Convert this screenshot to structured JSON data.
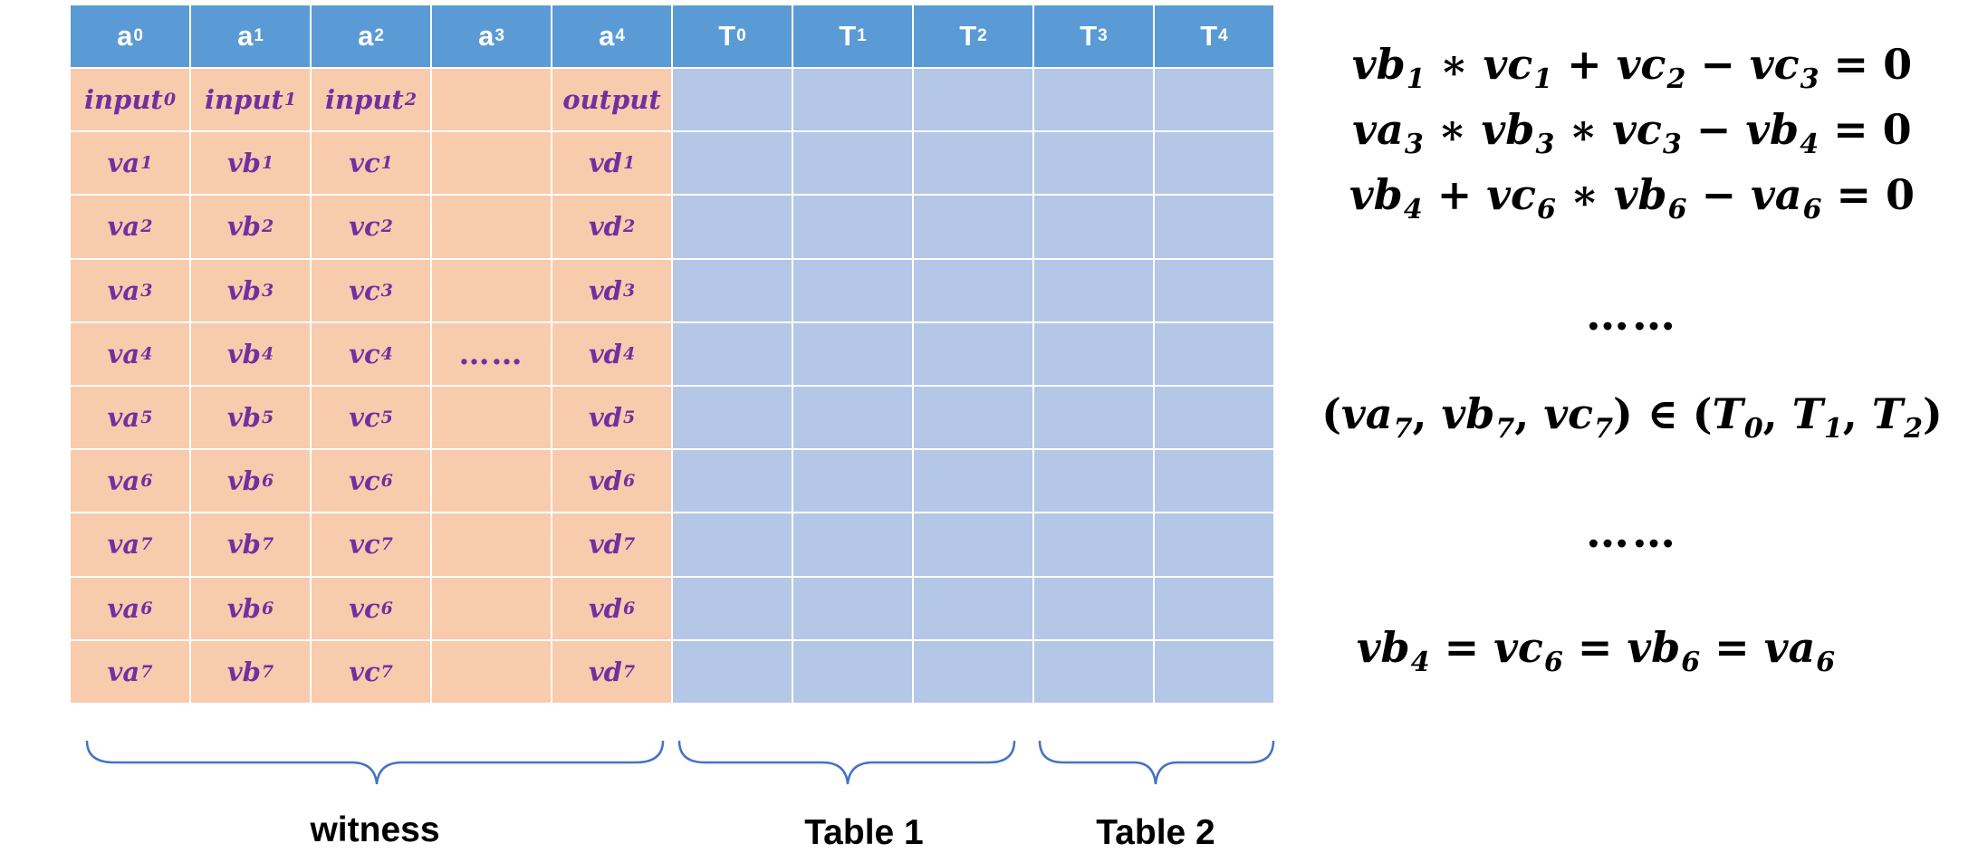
{
  "headers": [
    {
      "base": "a",
      "sub": "0",
      "kind": "witness"
    },
    {
      "base": "a",
      "sub": "1",
      "kind": "witness"
    },
    {
      "base": "a",
      "sub": "2",
      "kind": "witness"
    },
    {
      "base": "a",
      "sub": "3",
      "kind": "witness"
    },
    {
      "base": "a",
      "sub": "4",
      "kind": "witness"
    },
    {
      "base": "T",
      "sub": "0",
      "kind": "table"
    },
    {
      "base": "T",
      "sub": "1",
      "kind": "table"
    },
    {
      "base": "T",
      "sub": "2",
      "kind": "table"
    },
    {
      "base": "T",
      "sub": "3",
      "kind": "table"
    },
    {
      "base": "T",
      "sub": "4",
      "kind": "table"
    }
  ],
  "witness_rows": [
    [
      {
        "b": "input",
        "s": "0"
      },
      {
        "b": "input",
        "s": "1"
      },
      {
        "b": "input",
        "s": "2"
      },
      {
        "b": "",
        "s": ""
      },
      {
        "b": "output",
        "s": ""
      }
    ],
    [
      {
        "b": "va",
        "s": "1"
      },
      {
        "b": "vb",
        "s": "1"
      },
      {
        "b": "vc",
        "s": "1"
      },
      {
        "b": "",
        "s": ""
      },
      {
        "b": "vd",
        "s": "1"
      }
    ],
    [
      {
        "b": "va",
        "s": "2"
      },
      {
        "b": "vb",
        "s": "2"
      },
      {
        "b": "vc",
        "s": "2"
      },
      {
        "b": "",
        "s": ""
      },
      {
        "b": "vd",
        "s": "2"
      }
    ],
    [
      {
        "b": "va",
        "s": "3"
      },
      {
        "b": "vb",
        "s": "3"
      },
      {
        "b": "vc",
        "s": "3"
      },
      {
        "b": "",
        "s": ""
      },
      {
        "b": "vd",
        "s": "3"
      }
    ],
    [
      {
        "b": "va",
        "s": "4"
      },
      {
        "b": "vb",
        "s": "4"
      },
      {
        "b": "vc",
        "s": "4"
      },
      {
        "b": "……",
        "s": ""
      },
      {
        "b": "vd",
        "s": "4"
      }
    ],
    [
      {
        "b": "va",
        "s": "5"
      },
      {
        "b": "vb",
        "s": "5"
      },
      {
        "b": "vc",
        "s": "5"
      },
      {
        "b": "",
        "s": ""
      },
      {
        "b": "vd",
        "s": "5"
      }
    ],
    [
      {
        "b": "va",
        "s": "6"
      },
      {
        "b": "vb",
        "s": "6"
      },
      {
        "b": "vc",
        "s": "6"
      },
      {
        "b": "",
        "s": ""
      },
      {
        "b": "vd",
        "s": "6"
      }
    ],
    [
      {
        "b": "va",
        "s": "7"
      },
      {
        "b": "vb",
        "s": "7"
      },
      {
        "b": "vc",
        "s": "7"
      },
      {
        "b": "",
        "s": ""
      },
      {
        "b": "vd",
        "s": "7"
      }
    ],
    [
      {
        "b": "va",
        "s": "6"
      },
      {
        "b": "vb",
        "s": "6"
      },
      {
        "b": "vc",
        "s": "6"
      },
      {
        "b": "",
        "s": ""
      },
      {
        "b": "vd",
        "s": "6"
      }
    ],
    [
      {
        "b": "va",
        "s": "7"
      },
      {
        "b": "vb",
        "s": "7"
      },
      {
        "b": "vc",
        "s": "7"
      },
      {
        "b": "",
        "s": ""
      },
      {
        "b": "vd",
        "s": "7"
      }
    ]
  ],
  "equations": [
    [
      {
        "t": "vb",
        "s": "1"
      },
      {
        "op": " ∗ "
      },
      {
        "t": "vc",
        "s": "1"
      },
      {
        "op": " + "
      },
      {
        "t": "vc",
        "s": "2"
      },
      {
        "op": " − "
      },
      {
        "t": "vc",
        "s": "3"
      },
      {
        "op": " = 0"
      }
    ],
    [
      {
        "t": "va",
        "s": "3"
      },
      {
        "op": " ∗ "
      },
      {
        "t": "vb",
        "s": "3"
      },
      {
        "op": " ∗ "
      },
      {
        "t": "vc",
        "s": "3"
      },
      {
        "op": " − "
      },
      {
        "t": "vb",
        "s": "4"
      },
      {
        "op": " = 0"
      }
    ],
    [
      {
        "t": "vb",
        "s": "4"
      },
      {
        "op": " + "
      },
      {
        "t": "vc",
        "s": "6"
      },
      {
        "op": " ∗ "
      },
      {
        "t": "vb",
        "s": "6"
      },
      {
        "op": " − "
      },
      {
        "t": "va",
        "s": "6"
      },
      {
        "op": " = 0"
      }
    ]
  ],
  "ellipsis": "……",
  "lookup": [
    {
      "op": "("
    },
    {
      "t": "va",
      "s": "7"
    },
    {
      "op": ", "
    },
    {
      "t": "vb",
      "s": "7"
    },
    {
      "op": ", "
    },
    {
      "t": "vc",
      "s": "7"
    },
    {
      "op": ") ∈ ("
    },
    {
      "t": "T",
      "s": "0"
    },
    {
      "op": ", "
    },
    {
      "t": "T",
      "s": "1"
    },
    {
      "op": ", "
    },
    {
      "t": "T",
      "s": "2"
    },
    {
      "op": ")"
    }
  ],
  "copy": [
    {
      "t": "vb",
      "s": "4"
    },
    {
      "op": " = "
    },
    {
      "t": "vc",
      "s": "6"
    },
    {
      "op": " = "
    },
    {
      "t": "vb",
      "s": "6"
    },
    {
      "op": " = "
    },
    {
      "t": "va",
      "s": "6"
    }
  ],
  "groups": {
    "witness": "witness",
    "table1": "Table 1",
    "table2": "Table 2"
  },
  "colors": {
    "header": "#5b9bd5",
    "witness_cell": "#f8cbad",
    "table_cell": "#b4c7e7",
    "witness_text": "#7030a0",
    "brace": "#4472c4"
  }
}
